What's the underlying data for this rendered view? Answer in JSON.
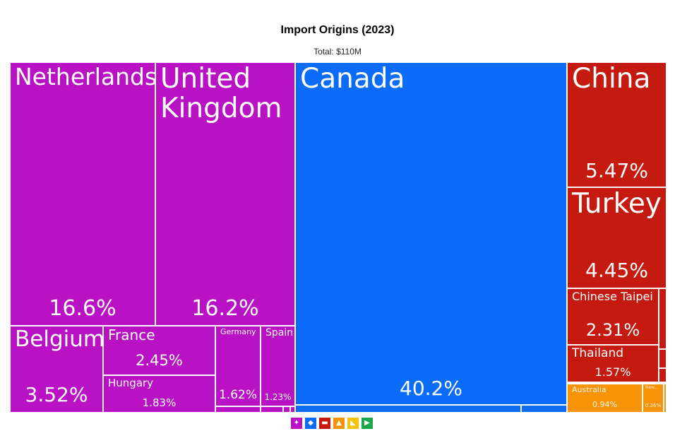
{
  "chart_data": {
    "type": "treemap",
    "title": "Import Origins (2023)",
    "subtitle": "Total: $110M",
    "tiles": [
      {
        "name": "Netherlands",
        "percent_label": "16.6%",
        "value": 16.6,
        "color": "#b812c4"
      },
      {
        "name": "United Kingdom",
        "percent_label": "16.2%",
        "value": 16.2,
        "color": "#b812c4"
      },
      {
        "name": "Belgium",
        "percent_label": "3.52%",
        "value": 3.52,
        "color": "#b812c4"
      },
      {
        "name": "France",
        "percent_label": "2.45%",
        "value": 2.45,
        "color": "#b812c4"
      },
      {
        "name": "Hungary",
        "percent_label": "1.83%",
        "value": 1.83,
        "color": "#b812c4"
      },
      {
        "name": "Germany",
        "percent_label": "1.62%",
        "value": 1.62,
        "color": "#b812c4"
      },
      {
        "name": "Spain",
        "percent_label": "1.23%",
        "value": 1.23,
        "color": "#b812c4"
      },
      {
        "name": "Canada",
        "percent_label": "40.2%",
        "value": 40.2,
        "color": "#0a6cf8"
      },
      {
        "name": "China",
        "percent_label": "5.47%",
        "value": 5.47,
        "color": "#c51a10"
      },
      {
        "name": "Turkey",
        "percent_label": "4.45%",
        "value": 4.45,
        "color": "#c51a10"
      },
      {
        "name": "Chinese Taipei",
        "percent_label": "2.31%",
        "value": 2.31,
        "color": "#c51a10"
      },
      {
        "name": "Thailand",
        "percent_label": "1.57%",
        "value": 1.57,
        "color": "#c51a10"
      },
      {
        "name": "Australia",
        "percent_label": "0.94%",
        "value": 0.94,
        "color": "#f79307"
      },
      {
        "name": "New...",
        "percent_label": "0.26%",
        "value": 0.26,
        "color": "#f79307"
      }
    ],
    "minor_tiles_colors": {
      "europe": "#b812c4",
      "americas": "#0a6cf8",
      "asia": "#c51a10",
      "oceania": "#f79307"
    },
    "legend": [
      {
        "icon": "europe-icon",
        "glyph": "✦",
        "color": "#b812c4"
      },
      {
        "icon": "north-america-icon",
        "glyph": "◆",
        "color": "#0a6cf8"
      },
      {
        "icon": "asia-icon",
        "glyph": "▬",
        "color": "#c51a10"
      },
      {
        "icon": "oceania-icon",
        "glyph": "▲",
        "color": "#f79307"
      },
      {
        "icon": "africa-icon",
        "glyph": "◣",
        "color": "#f2c40c"
      },
      {
        "icon": "south-america-icon",
        "glyph": "▶",
        "color": "#1aa84a"
      }
    ]
  }
}
